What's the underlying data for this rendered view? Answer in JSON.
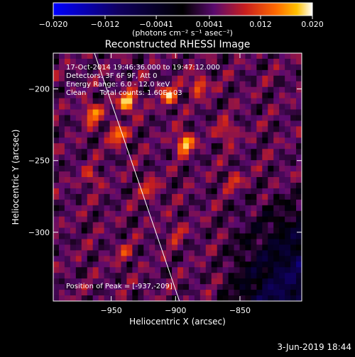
{
  "chart_data": {
    "type": "heatmap",
    "title": "Reconstructed RHESSI Image",
    "xlabel": "Heliocentric X (arcsec)",
    "ylabel": "Heliocentric Y (arcsec)",
    "xlim": [
      -995,
      -802
    ],
    "ylim": [
      -348,
      -175
    ],
    "x_ticks": [
      {
        "value": -950,
        "label": "−950"
      },
      {
        "value": -900,
        "label": "−900"
      },
      {
        "value": -850,
        "label": "−850"
      }
    ],
    "y_ticks": [
      {
        "value": -200,
        "label": "−200"
      },
      {
        "value": -250,
        "label": "−250"
      },
      {
        "value": -300,
        "label": "−300"
      }
    ],
    "colorbar": {
      "min": -0.02,
      "max": 0.02,
      "units": "(photons cm⁻² s⁻¹ asec⁻²)",
      "ticks": [
        {
          "value": -0.02,
          "label": "−0.020"
        },
        {
          "value": -0.012,
          "label": "−0.012"
        },
        {
          "value": -0.0041,
          "label": "−0.0041"
        },
        {
          "value": 0.0041,
          "label": "0.0041"
        },
        {
          "value": 0.012,
          "label": "0.012"
        },
        {
          "value": 0.02,
          "label": "0.020"
        }
      ]
    },
    "annotations": [
      "17-Oct-2014 19:46:36.000 to 19:47:12.000",
      "Detectors: 3F 6F 9F, Att 0",
      "Energy Range: 6.0 - 12.0 keV",
      "Clean      Total counts: 1.60E+03"
    ],
    "peak_label": "Position of Peak = [-937,-209]",
    "peak": {
      "x": -937,
      "y": -209
    },
    "limb_line": [
      {
        "x": -963,
        "y": -175
      },
      {
        "x": -897,
        "y": -348
      }
    ],
    "hot_spots": [
      {
        "x": -937,
        "y": -209,
        "value": 0.02
      },
      {
        "x": -893,
        "y": -238,
        "value": 0.019
      },
      {
        "x": -965,
        "y": -217,
        "value": 0.016
      },
      {
        "x": -945,
        "y": -232,
        "value": 0.015
      },
      {
        "x": -905,
        "y": -205,
        "value": 0.015
      },
      {
        "x": -882,
        "y": -198,
        "value": 0.014
      },
      {
        "x": -860,
        "y": -230,
        "value": 0.012
      },
      {
        "x": -965,
        "y": -262,
        "value": 0.01
      },
      {
        "x": -920,
        "y": -270,
        "value": 0.011
      },
      {
        "x": -855,
        "y": -265,
        "value": 0.01
      },
      {
        "x": -900,
        "y": -300,
        "value": 0.009
      },
      {
        "x": -940,
        "y": -315,
        "value": 0.009
      }
    ]
  },
  "footer": {
    "date": "3-Jun-2019 18:44"
  },
  "colors": {
    "background": "#000000",
    "foreground": "#ffffff",
    "colormap": [
      "#0000ff",
      "#000000",
      "#5a0a6e",
      "#c81e1e",
      "#ff6a00",
      "#ffc000",
      "#ffffff"
    ]
  }
}
